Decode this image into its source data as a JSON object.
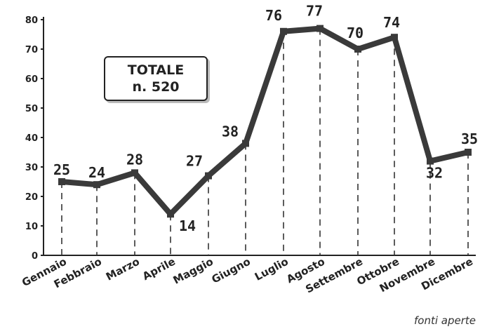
{
  "chart_data": {
    "type": "line",
    "categories": [
      "Gennaio",
      "Febbraio",
      "Marzo",
      "Aprile",
      "Maggio",
      "Giugno",
      "Luglio",
      "Agosto",
      "Settembre",
      "Ottobre",
      "Novembre",
      "Dicembre"
    ],
    "values": [
      25,
      24,
      28,
      14,
      27,
      38,
      76,
      77,
      70,
      74,
      32,
      35
    ],
    "yticks": [
      "0",
      "10",
      "20",
      "30",
      "40",
      "50",
      "60",
      "70",
      "80"
    ],
    "ylim": [
      0,
      80
    ],
    "grid": "dashed vertical drop lines",
    "line_color": "#3a3a3a"
  },
  "total_box": {
    "line1": "TOTALE",
    "line2": "n. 520"
  },
  "source": "fonti aperte"
}
